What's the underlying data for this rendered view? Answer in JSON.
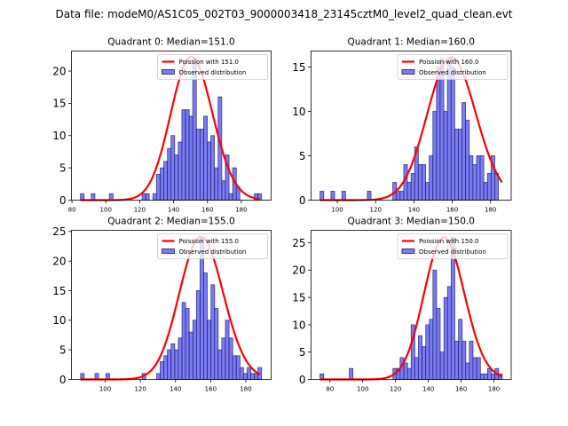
{
  "figure": {
    "suptitle": "Data file: modeM0/AS1C05_002T03_9000003418_23145cztM0_level2_quad_clean.evt"
  },
  "colors": {
    "bar_fill": "#7b7bf3",
    "bar_edge": "#1a1a6e",
    "poisson_line": "#ff0000",
    "axis": "#000000"
  },
  "chart_data": [
    {
      "type": "bar",
      "title": "Quadrant 0: Median=151.0",
      "median": 151.0,
      "xlabel": "",
      "ylabel": "",
      "xlim": [
        79.7,
        197.6
      ],
      "ylim": [
        0,
        23.1
      ],
      "xticks": [
        80,
        100,
        120,
        140,
        160,
        180
      ],
      "yticks": [
        0,
        5,
        10,
        15,
        20
      ],
      "legend": [
        "Poission with 151.0",
        "Observed distribution"
      ],
      "legend_position": "top-right",
      "bin_width": 2.14,
      "bins": [
        85.0,
        87.1,
        89.3,
        91.4,
        93.6,
        95.7,
        97.8,
        100.0,
        102.1,
        104.3,
        106.4,
        108.5,
        110.7,
        112.8,
        115.0,
        117.1,
        119.2,
        121.4,
        123.5,
        125.7,
        127.8,
        129.9,
        132.1,
        134.2,
        136.4,
        138.5,
        140.6,
        142.8,
        144.9,
        147.1,
        149.2,
        151.3,
        153.5,
        155.6,
        157.8,
        159.9,
        162.0,
        164.2,
        166.3,
        168.5,
        170.6,
        172.7,
        174.9,
        177.0,
        179.2,
        181.3,
        183.4,
        185.6,
        187.7,
        189.8
      ],
      "counts": [
        1,
        0,
        0,
        1,
        0,
        0,
        0,
        0,
        1,
        0,
        0,
        0,
        0,
        0,
        0,
        0,
        0,
        1,
        1,
        0,
        1,
        4,
        5,
        6,
        8,
        10,
        7,
        9,
        14,
        14,
        13,
        22,
        11,
        11,
        13,
        9,
        10,
        5,
        16,
        3,
        7,
        1,
        5,
        2,
        0,
        0,
        0,
        0,
        1,
        1
      ],
      "poisson_peak": 22.2
    },
    {
      "type": "bar",
      "title": "Quadrant 1: Median=160.0",
      "median": 160.0,
      "xlabel": "",
      "ylabel": "",
      "xlim": [
        86.3,
        190.8
      ],
      "ylim": [
        0,
        16.8
      ],
      "xticks": [
        100,
        120,
        140,
        160,
        180
      ],
      "yticks": [
        0,
        5,
        10,
        15
      ],
      "legend": [
        "Poission with 160.0",
        "Observed distribution"
      ],
      "legend_position": "top-right",
      "bin_width": 1.9,
      "bins": [
        91.0,
        92.9,
        94.8,
        96.7,
        98.6,
        100.5,
        102.4,
        104.3,
        106.2,
        108.1,
        110.0,
        111.9,
        113.8,
        115.7,
        117.6,
        119.5,
        121.4,
        123.3,
        125.2,
        127.1,
        129.0,
        130.9,
        132.8,
        134.7,
        136.6,
        138.5,
        140.4,
        142.3,
        144.2,
        146.1,
        148.0,
        149.9,
        151.8,
        153.7,
        155.6,
        157.5,
        159.4,
        161.3,
        163.2,
        165.1,
        167.0,
        168.9,
        170.8,
        172.7,
        174.6,
        176.5,
        178.4,
        180.3,
        182.2,
        184.1
      ],
      "counts": [
        1,
        0,
        0,
        1,
        0,
        0,
        1,
        0,
        0,
        0,
        0,
        0,
        0,
        1,
        0,
        0,
        0,
        0,
        0,
        0,
        2,
        1,
        1,
        4,
        2,
        3,
        6,
        4,
        4,
        2,
        5,
        10,
        15,
        16,
        10,
        16,
        15,
        8,
        8,
        11,
        9,
        5,
        4,
        5,
        5,
        2,
        3,
        5,
        3,
        0
      ],
      "poisson_peak": 16.1
    },
    {
      "type": "bar",
      "title": "Quadrant 2: Median=155.0",
      "median": 155.0,
      "xlabel": "",
      "ylabel": "",
      "xlim": [
        80.8,
        194.4
      ],
      "ylim": [
        0,
        25.2
      ],
      "xticks": [
        100,
        120,
        140,
        160,
        180
      ],
      "yticks": [
        0,
        5,
        10,
        15,
        20,
        25
      ],
      "legend": [
        "Poission with 155.0",
        "Observed distribution"
      ],
      "legend_position": "top-right",
      "bin_width": 2.06,
      "bins": [
        86.0,
        88.1,
        90.1,
        92.2,
        94.2,
        96.3,
        98.4,
        100.4,
        102.5,
        104.5,
        106.6,
        108.7,
        110.7,
        112.8,
        114.8,
        116.9,
        119.0,
        121.0,
        123.1,
        125.1,
        127.2,
        129.3,
        131.3,
        133.4,
        135.4,
        137.5,
        139.6,
        141.6,
        143.7,
        145.7,
        147.8,
        149.9,
        151.9,
        154.0,
        156.0,
        158.1,
        160.2,
        162.2,
        164.3,
        166.3,
        168.4,
        170.5,
        172.5,
        174.6,
        176.6,
        178.7,
        180.8,
        182.8,
        184.9,
        186.9
      ],
      "counts": [
        1,
        0,
        0,
        0,
        1,
        0,
        0,
        1,
        0,
        0,
        0,
        0,
        0,
        0,
        0,
        0,
        0,
        1,
        0,
        0,
        0,
        1,
        3,
        4,
        5,
        6,
        5,
        7,
        13,
        12,
        8,
        10,
        15,
        24,
        18,
        10,
        16,
        12,
        5,
        7,
        10,
        7,
        4,
        4,
        2,
        1,
        2,
        1,
        1,
        2
      ],
      "poisson_peak": 24.1
    },
    {
      "type": "bar",
      "title": "Quadrant 3: Median=150.0",
      "median": 150.0,
      "xlabel": "",
      "ylabel": "",
      "xlim": [
        68.5,
        190.5
      ],
      "ylim": [
        0,
        27.3
      ],
      "xticks": [
        80,
        100,
        120,
        140,
        160,
        180
      ],
      "yticks": [
        0,
        5,
        10,
        15,
        20,
        25
      ],
      "legend": [
        "Poission with 150.0",
        "Observed distribution"
      ],
      "legend_position": "top-right",
      "bin_width": 2.22,
      "bins": [
        74.0,
        76.2,
        78.4,
        80.7,
        82.9,
        85.1,
        87.3,
        89.5,
        91.8,
        94.0,
        96.2,
        98.4,
        100.6,
        102.9,
        105.1,
        107.3,
        109.5,
        111.7,
        114.0,
        116.2,
        118.4,
        120.6,
        122.8,
        125.1,
        127.3,
        129.5,
        131.7,
        133.9,
        136.2,
        138.4,
        140.6,
        142.8,
        145.0,
        147.3,
        149.5,
        151.7,
        153.9,
        156.1,
        158.4,
        160.6,
        162.8,
        165.0,
        167.2,
        169.5,
        171.7,
        173.9,
        176.1,
        178.3,
        180.6,
        182.8
      ],
      "counts": [
        1,
        0,
        0,
        0,
        0,
        0,
        0,
        0,
        2,
        0,
        0,
        0,
        0,
        0,
        0,
        0,
        0,
        0,
        0,
        0,
        2,
        2,
        4,
        3,
        2,
        10,
        4,
        8,
        6,
        10,
        11,
        20,
        13,
        5,
        15,
        17,
        26,
        7,
        11,
        7,
        3,
        7,
        4,
        4,
        1,
        1,
        2,
        1,
        2,
        1
      ],
      "poisson_peak": 26.0
    }
  ]
}
